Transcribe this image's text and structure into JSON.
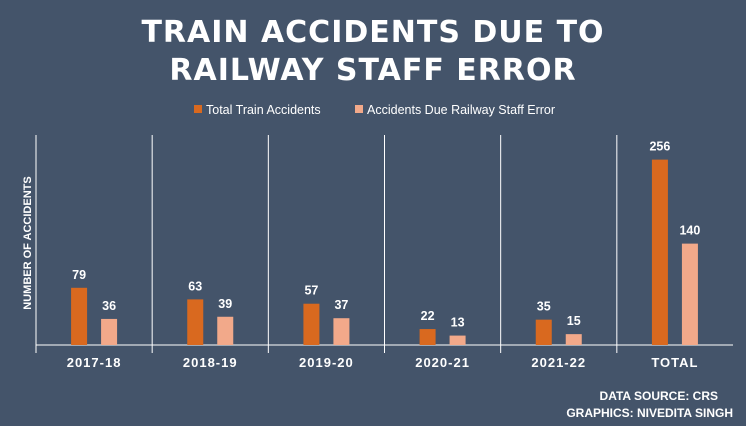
{
  "chart_data": {
    "type": "bar",
    "title_lines": [
      "TRAIN ACCIDENTS DUE TO",
      "RAILWAY STAFF ERROR"
    ],
    "categories": [
      "2017-18",
      "2018-19",
      "2019-20",
      "2020-21",
      "2021-22",
      "TOTAL"
    ],
    "series": [
      {
        "name": "Total Train Accidents",
        "values": [
          79,
          63,
          57,
          22,
          35,
          256
        ],
        "color": "#d9691f"
      },
      {
        "name": "Accidents Due Railway Staff Error",
        "values": [
          36,
          39,
          37,
          13,
          15,
          140
        ],
        "color": "#f2a98a"
      }
    ],
    "ylabel": "NUMBER OF ACCIDENTS",
    "ylim": [
      0,
      290
    ],
    "grid": false,
    "legend": "top"
  },
  "credits": {
    "source": "DATA SOURCE: CRS",
    "graphics": "GRAPHICS: NIVEDITA SINGH"
  }
}
